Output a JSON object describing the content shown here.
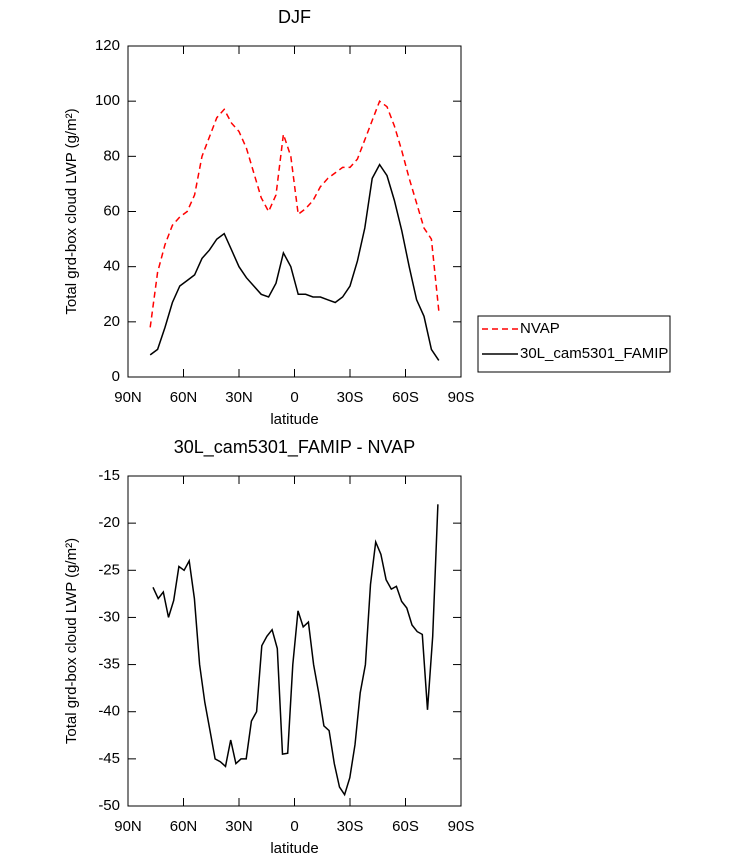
{
  "chart_data": [
    {
      "type": "line",
      "title": "DJF",
      "xlabel": "latitude",
      "ylabel": "Total grd-box cloud LWP (g/m²)",
      "x": [
        78,
        74,
        70,
        66,
        62,
        58,
        54,
        50,
        46,
        42,
        38,
        34,
        30,
        26,
        22,
        18,
        14,
        10,
        6,
        2,
        -2,
        -6,
        -10,
        -14,
        -18,
        -22,
        -26,
        -30,
        -34,
        -38,
        -42,
        -46,
        -50,
        -54,
        -58,
        -62,
        -66,
        -70,
        -74,
        -78
      ],
      "series": [
        {
          "name": "NVAP",
          "color": "#ff0000",
          "dash": "dashed",
          "values": [
            18,
            38,
            48,
            55,
            58,
            60,
            66,
            80,
            87,
            94,
            97,
            92,
            89,
            83,
            74,
            65,
            60,
            66,
            88,
            80,
            59,
            61,
            64,
            69,
            72,
            74,
            76,
            76,
            79,
            86,
            93,
            100,
            98,
            91,
            82,
            72,
            63,
            54,
            50,
            24
          ]
        },
        {
          "name": "30L_cam5301_FAMIP",
          "color": "#000000",
          "dash": "solid",
          "values": [
            8,
            10,
            18,
            27,
            33,
            35,
            37,
            43,
            46,
            50,
            52,
            46,
            40,
            36,
            33,
            30,
            29,
            34,
            45,
            40,
            30,
            30,
            29,
            29,
            28,
            27,
            29,
            33,
            42,
            54,
            72,
            77,
            73,
            64,
            53,
            40,
            28,
            22,
            10,
            6
          ]
        }
      ],
      "xlim": [
        90,
        -90
      ],
      "xticks": [
        {
          "value": 90,
          "label": "90N"
        },
        {
          "value": 60,
          "label": "60N"
        },
        {
          "value": 30,
          "label": "30N"
        },
        0,
        {
          "value": -30,
          "label": "30S"
        },
        {
          "value": -60,
          "label": "60S"
        },
        {
          "value": -90,
          "label": "90S"
        }
      ],
      "ylim": [
        0,
        120
      ],
      "yticks": [
        0,
        20,
        40,
        60,
        80,
        100,
        120
      ],
      "legend": "outside-right"
    },
    {
      "type": "line",
      "title": "30L_cam5301_FAMIP - NVAP",
      "xlabel": "latitude",
      "ylabel": "Total grd-box cloud LWP (g/m²)",
      "x": [
        76.5,
        73.7,
        70.9,
        68.1,
        65.3,
        62.5,
        59.7,
        56.9,
        54.1,
        51.3,
        48.5,
        45.7,
        42.9,
        40.1,
        37.3,
        34.5,
        31.7,
        28.9,
        26.1,
        23.3,
        20.5,
        17.7,
        14.9,
        12.1,
        9.3,
        6.5,
        3.7,
        0.9,
        -1.9,
        -4.7,
        -7.5,
        -10.3,
        -13.1,
        -15.9,
        -18.7,
        -21.5,
        -24.3,
        -27.1,
        -29.9,
        -32.7,
        -35.5,
        -38.3,
        -41.1,
        -43.9,
        -46.7,
        -49.5,
        -52.3,
        -55.1,
        -57.9,
        -60.7,
        -63.5,
        -66.3,
        -69.1,
        -71.9,
        -74.7,
        -77.5
      ],
      "series": [
        {
          "color": "#000000",
          "dash": "solid",
          "values": [
            -26.8,
            -28,
            -27.3,
            -30,
            -28.2,
            -24.6,
            -25,
            -24,
            -28,
            -35,
            -39,
            -42,
            -45,
            -45.3,
            -45.8,
            -43,
            -45.5,
            -45,
            -45,
            -41,
            -40,
            -33,
            -32,
            -31.3,
            -33.3,
            -44.5,
            -44.4,
            -35,
            -29.3,
            -31,
            -30.5,
            -35,
            -38,
            -41.5,
            -42,
            -45.5,
            -48,
            -48.8,
            -47,
            -43.5,
            -38,
            -35,
            -26.5,
            -22,
            -23.3,
            -26,
            -27,
            -26.7,
            -28.3,
            -29,
            -30.8,
            -31.5,
            -31.8,
            -39.8,
            -32,
            -18
          ]
        }
      ],
      "xlim": [
        90,
        -90
      ],
      "xticks": [
        {
          "value": 90,
          "label": "90N"
        },
        {
          "value": 60,
          "label": "60N"
        },
        {
          "value": 30,
          "label": "30N"
        },
        0,
        {
          "value": -30,
          "label": "30S"
        },
        {
          "value": -60,
          "label": "60S"
        },
        {
          "value": -90,
          "label": "90S"
        }
      ],
      "ylim": [
        -50,
        -15
      ],
      "yticks": [
        -50,
        -45,
        -40,
        -35,
        -30,
        -25,
        -20,
        -15
      ]
    }
  ]
}
